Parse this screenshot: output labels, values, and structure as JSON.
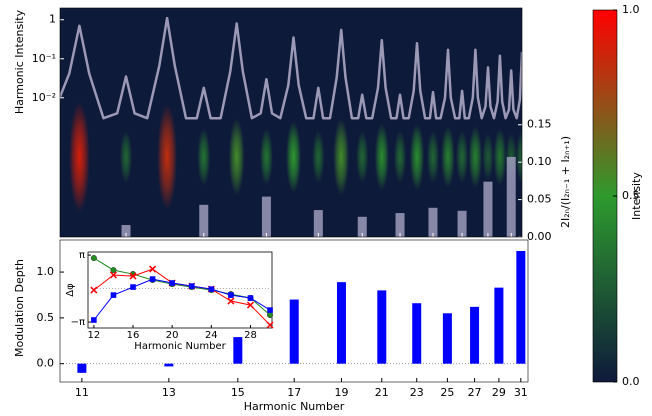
{
  "chart_data": [
    {
      "type": "heatmap",
      "ylabel": "Harmonic Intensity",
      "y2label": "2I₂ₙ/(I₂ₙ₋₁ + I₂ₙ₊₁)",
      "xlim": [
        10.62,
        31.0
      ],
      "xticks": [
        12,
        14,
        16,
        18,
        20,
        22,
        24,
        26,
        28,
        30
      ],
      "log_y": true,
      "ylim": [
        2.7e-06,
        2.0
      ],
      "yticks": [
        1,
        {
          "value": 0.1,
          "label": "10⁻¹"
        },
        {
          "value": 0.01,
          "label": "10⁻²"
        }
      ],
      "y2lim": [
        0,
        0.306
      ],
      "y2ticks": [
        {
          "value": 0,
          "label": "0.00"
        },
        {
          "value": 0.05,
          "label": "0.05"
        },
        {
          "value": 0.1,
          "label": "0.10"
        },
        {
          "value": 0.15,
          "label": "0.15"
        }
      ],
      "colormap": [
        "#0e1a3a",
        "#2e9a2e",
        "#ff0000"
      ],
      "spots": {
        "x": [
          11,
          12,
          13,
          14,
          15,
          16,
          17,
          18,
          19,
          20,
          21,
          22,
          23,
          24,
          25,
          26,
          27,
          28,
          29,
          30,
          31
        ],
        "values": [
          0.9,
          0.3,
          0.85,
          0.35,
          0.55,
          0.35,
          0.5,
          0.3,
          0.55,
          0.3,
          0.45,
          0.3,
          0.45,
          0.3,
          0.4,
          0.3,
          0.4,
          0.25,
          0.35,
          0.25,
          0.3
        ]
      },
      "intensity_curve": {
        "color": "#b4b0cc",
        "x": [
          10.6,
          10.8,
          11,
          11.2,
          11.5,
          11.8,
          12,
          12.2,
          12.5,
          12.8,
          13,
          13.2,
          13.5,
          13.8,
          14,
          14.2,
          14.5,
          14.8,
          15,
          15.2,
          15.5,
          15.8,
          16,
          16.2,
          16.5,
          16.8,
          17,
          17.2,
          17.5,
          17.8,
          18,
          18.2,
          18.5,
          18.8,
          19,
          19.2,
          19.5,
          19.8,
          20,
          20.2,
          20.5,
          20.8,
          21,
          21.2,
          21.5,
          21.8,
          22,
          22.2,
          22.5,
          22.8,
          23,
          23.2,
          23.5,
          23.8,
          24,
          24.2,
          24.5,
          24.8,
          25,
          25.2,
          25.5,
          25.8,
          26,
          26.2,
          26.5,
          26.8,
          27,
          27.2,
          27.5,
          27.8,
          28,
          28.2,
          28.5,
          28.8,
          29,
          29.2,
          29.5,
          29.8,
          30,
          30.2,
          30.5,
          30.8,
          31
        ],
        "values": [
          0.009,
          0.042,
          0.7,
          0.042,
          0.003,
          0.004,
          0.035,
          0.004,
          0.003,
          0.066,
          1.1,
          0.066,
          0.003,
          0.003,
          0.018,
          0.003,
          0.003,
          0.048,
          0.8,
          0.048,
          0.003,
          0.004,
          0.03,
          0.004,
          0.003,
          0.021,
          0.35,
          0.021,
          0.003,
          0.003,
          0.018,
          0.003,
          0.003,
          0.033,
          0.55,
          0.033,
          0.003,
          0.003,
          0.012,
          0.003,
          0.003,
          0.018,
          0.3,
          0.018,
          0.003,
          0.003,
          0.012,
          0.003,
          0.003,
          0.015,
          0.25,
          0.015,
          0.003,
          0.003,
          0.014,
          0.003,
          0.003,
          0.01,
          0.17,
          0.01,
          0.003,
          0.003,
          0.015,
          0.003,
          0.003,
          0.01,
          0.17,
          0.01,
          0.003,
          0.006,
          0.06,
          0.006,
          0.003,
          0.008,
          0.12,
          0.008,
          0.003,
          0.005,
          0.05,
          0.005,
          0.003,
          0.009,
          0.15
        ]
      },
      "ratio_bars": {
        "axis": "y2",
        "color": "#a6a2c4",
        "x": [
          12,
          14,
          16,
          18,
          20,
          22,
          24,
          26,
          28,
          30
        ],
        "values": [
          0.016,
          0.043,
          0.054,
          0.036,
          0.027,
          0.032,
          0.039,
          0.035,
          0.074,
          0.107
        ]
      },
      "colorbar": {
        "label": "Intensity",
        "lim": [
          0,
          1
        ],
        "ticks": [
          {
            "value": 0,
            "label": "0.0"
          },
          {
            "value": 0.5,
            "label": "0.5"
          },
          {
            "value": 1,
            "label": "1.0"
          }
        ]
      }
    },
    {
      "type": "bar",
      "xlabel": "Harmonic Number",
      "ylabel": "Modulation Depth",
      "x": [
        11,
        13,
        15,
        17,
        19,
        21,
        23,
        25,
        27,
        29,
        31
      ],
      "values": [
        -0.1,
        -0.03,
        0.29,
        0.7,
        0.89,
        0.8,
        0.66,
        0.55,
        0.62,
        0.83,
        1.23
      ],
      "color": "#0000ff",
      "xlim": [
        10.57,
        31.7
      ],
      "xticks": [
        11,
        13,
        15,
        17,
        19,
        21,
        23,
        25,
        27,
        29,
        31
      ],
      "ylim": [
        -0.2,
        1.35
      ],
      "yticks": [
        {
          "value": 0,
          "label": "0.0"
        },
        {
          "value": 0.5,
          "label": "0.5"
        },
        {
          "value": 1,
          "label": "1.0"
        }
      ]
    },
    {
      "type": "line",
      "xlabel": "Harmonic Number",
      "ylabel": "Δφ",
      "x": [
        12,
        14,
        16,
        18,
        20,
        22,
        24,
        26,
        28,
        30
      ],
      "series": [
        {
          "color": "#228b22",
          "marker": "circle",
          "values": [
            2.86,
            1.73,
            1.36,
            0.8,
            0.42,
            0.14,
            -0.14,
            -0.52,
            -0.89,
            -2.48
          ]
        },
        {
          "color": "#ff0000",
          "marker": "x",
          "values": [
            -0.14,
            1.27,
            1.17,
            1.83,
            0.52,
            0.23,
            -0.05,
            -1.17,
            -1.55,
            -3.42
          ]
        },
        {
          "color": "#0000ff",
          "marker": "square",
          "values": [
            -2.95,
            -0.61,
            0.14,
            0.89,
            0.52,
            0.23,
            -0.05,
            -0.61,
            -0.89,
            -2.02
          ]
        }
      ],
      "xlim": [
        11.4,
        30.2
      ],
      "xticks": [
        12,
        16,
        20,
        24,
        28
      ],
      "ylim": [
        -3.7,
        3.43
      ],
      "yticks": [
        {
          "value": -3.14159,
          "label": "−π"
        },
        {
          "value": 3.14159,
          "label": "π"
        }
      ]
    }
  ]
}
